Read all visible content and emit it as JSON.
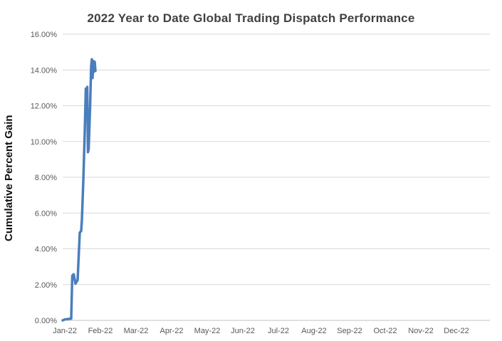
{
  "chart_data": {
    "type": "line",
    "title": "2022 Year to Date Global Trading Dispatch Performance",
    "ylabel": "Cumulative Percent Gain",
    "xlabel": "",
    "ylim": [
      0,
      16
    ],
    "ytick_step": 2,
    "ytick_labels": [
      "0.00%",
      "2.00%",
      "4.00%",
      "6.00%",
      "8.00%",
      "10.00%",
      "12.00%",
      "14.00%",
      "16.00%"
    ],
    "x_categories": [
      "Jan-22",
      "Feb-22",
      "Mar-22",
      "Apr-22",
      "May-22",
      "Jun-22",
      "Jul-22",
      "Aug-22",
      "Sep-22",
      "Oct-22",
      "Nov-22",
      "Dec-22"
    ],
    "grid": true,
    "legend_position": "none",
    "line_color": "#4a7ebd",
    "gridline_color": "#d9d9d9",
    "axis_line_color": "#bfbfbf",
    "tick_label_color": "#595959",
    "series": [
      {
        "name": "Cumulative Percent Gain",
        "x_months": [
          0.0,
          0.06,
          0.24,
          0.27,
          0.31,
          0.36,
          0.42,
          0.48,
          0.52,
          0.54,
          0.58,
          0.62,
          0.65,
          0.67,
          0.69,
          0.71,
          0.73,
          0.77,
          0.8,
          0.82,
          0.84,
          0.86,
          0.88,
          0.9,
          0.92
        ],
        "values": [
          0.0,
          0.05,
          0.1,
          2.5,
          2.58,
          2.05,
          2.25,
          4.9,
          5.0,
          5.6,
          7.8,
          10.5,
          12.95,
          12.55,
          13.05,
          9.4,
          9.55,
          11.9,
          14.2,
          14.6,
          13.55,
          14.5,
          13.9,
          14.45,
          13.95
        ]
      }
    ]
  }
}
